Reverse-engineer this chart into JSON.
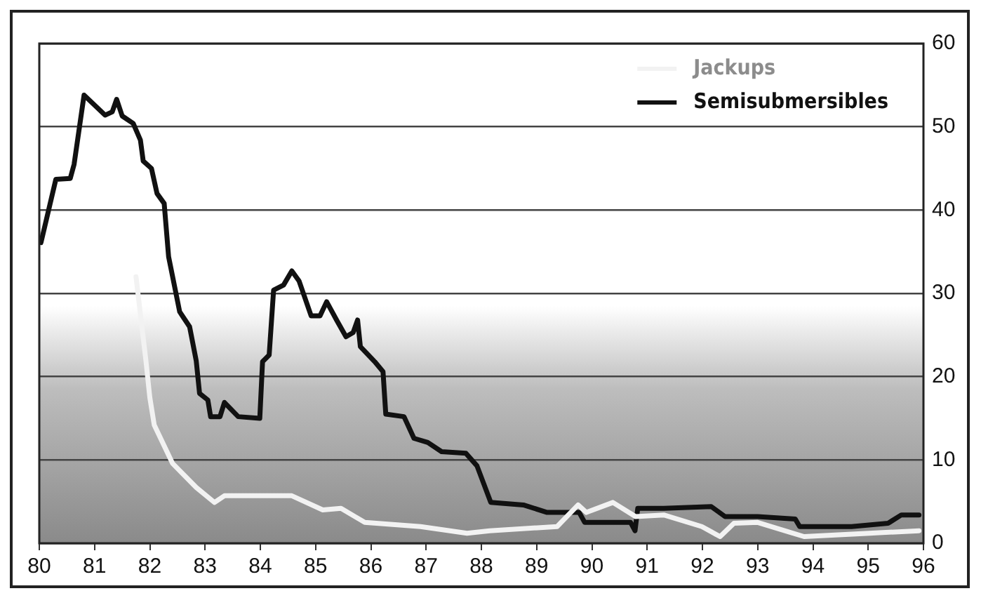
{
  "chart_data": {
    "type": "line",
    "xlim": [
      80,
      96
    ],
    "xticks": [
      80,
      81,
      82,
      83,
      84,
      85,
      86,
      87,
      88,
      89,
      90,
      91,
      92,
      93,
      94,
      95,
      96
    ],
    "ylim": [
      0,
      60
    ],
    "yticks": [
      0,
      10,
      20,
      30,
      40,
      50,
      60
    ],
    "grid": "y",
    "legend": "top right",
    "marker": "none",
    "line_style": "solid",
    "series": [
      {
        "name": "Jackups",
        "color": "#f2f2f2",
        "x": [
          81.75,
          81.93,
          82.0,
          82.08,
          82.41,
          82.84,
          83.17,
          83.35,
          84.57,
          85.13,
          85.46,
          85.89,
          86.9,
          87.74,
          88.15,
          89.37,
          89.75,
          89.9,
          90.38,
          90.79,
          91.3,
          91.99,
          92.32,
          92.57,
          93.0,
          93.84,
          95.92
        ],
        "values": [
          32,
          21.9,
          17.5,
          14.2,
          9.6,
          6.7,
          4.9,
          5.7,
          5.7,
          4,
          4.2,
          2.5,
          2,
          1.2,
          1.5,
          2,
          4.6,
          3.7,
          4.9,
          3.2,
          3.4,
          2,
          0.8,
          2.4,
          2.5,
          0.8,
          1.5
        ]
      },
      {
        "name": "Semisubmersibles",
        "color": "#111111",
        "x": [
          80.03,
          80.3,
          80.56,
          80.63,
          80.81,
          81.19,
          81.32,
          81.4,
          81.5,
          81.7,
          81.83,
          81.88,
          82.03,
          82.13,
          82.26,
          82.34,
          82.54,
          82.72,
          82.84,
          82.9,
          83.05,
          83.1,
          83.27,
          83.35,
          83.6,
          83.99,
          84.04,
          84.16,
          84.24,
          84.42,
          84.57,
          84.7,
          84.92,
          85.08,
          85.2,
          85.38,
          85.55,
          85.68,
          85.76,
          85.81,
          86.07,
          86.22,
          86.27,
          86.6,
          86.78,
          87.03,
          87.28,
          87.72,
          87.92,
          88.17,
          88.76,
          89.19,
          89.77,
          89.87,
          90.7,
          90.78,
          90.83,
          91.3,
          92.16,
          92.41,
          93.0,
          93.68,
          93.76,
          94.7,
          95.36,
          95.6,
          95.92
        ],
        "values": [
          36.1,
          43.7,
          43.8,
          45.5,
          53.8,
          51.4,
          51.8,
          53.3,
          51.3,
          50.4,
          48.4,
          45.9,
          45,
          42,
          40.8,
          34.4,
          27.8,
          26,
          21.9,
          18,
          17.2,
          15.2,
          15.2,
          16.9,
          15.2,
          15,
          21.8,
          22.6,
          30.4,
          31,
          32.7,
          31.5,
          27.3,
          27.3,
          29,
          26.8,
          24.8,
          25.3,
          26.8,
          23.6,
          21.8,
          20.6,
          15.5,
          15.2,
          12.6,
          12.1,
          11,
          10.8,
          9.3,
          4.9,
          4.6,
          3.7,
          3.7,
          2.5,
          2.5,
          1.5,
          4.2,
          4.2,
          4.4,
          3.2,
          3.2,
          2.9,
          2,
          2,
          2.4,
          3.4,
          3.4
        ]
      }
    ]
  }
}
